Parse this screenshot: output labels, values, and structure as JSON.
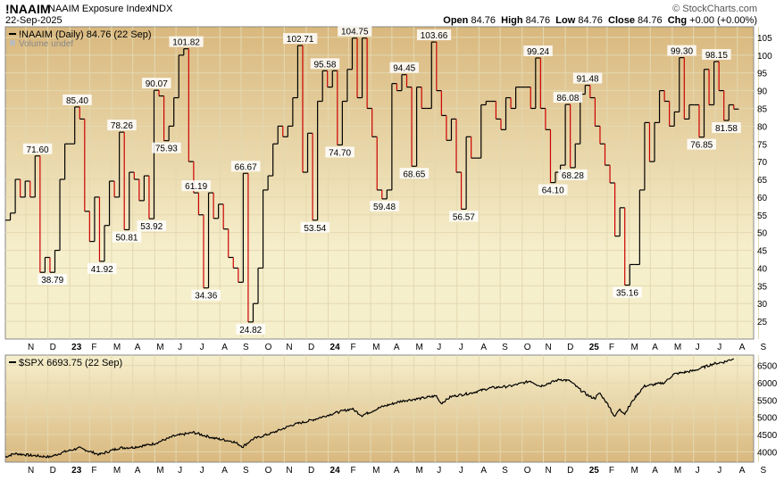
{
  "header": {
    "symbol": "!NAAIM",
    "name": "NAAIM Exposure Index",
    "exchange": "INDX",
    "date": "22-Sep-2025",
    "watermark": "© StockCharts.com",
    "quote": [
      {
        "label": "Open",
        "value": "84.76"
      },
      {
        "label": "High",
        "value": "84.76"
      },
      {
        "label": "Low",
        "value": "84.76"
      },
      {
        "label": "Close",
        "value": "84.76"
      },
      {
        "label": "Chg",
        "value": "+0.00 (+0.00%)"
      }
    ]
  },
  "colors": {
    "up": "#000000",
    "down": "#cc0000",
    "panel_top": "#d9b87e",
    "panel_mid": "#f6efcc",
    "grid": "#e3d8b0"
  },
  "chart_data": [
    {
      "type": "line",
      "panel": "NAAIM",
      "legend": "!NAAIM (Daily) 84.76 (22 Sep)",
      "legend_sub": "Volume undef",
      "x_unit": "week",
      "x_start": "2022-11-02",
      "x_end": "2025-09-24",
      "ylim": [
        20,
        108
      ],
      "yticks": [
        25,
        30,
        35,
        40,
        45,
        50,
        55,
        60,
        65,
        70,
        75,
        80,
        85,
        90,
        95,
        100,
        105
      ],
      "x_tick_labels": [
        "N",
        "D",
        "23",
        "F",
        "M",
        "A",
        "M",
        "J",
        "J",
        "A",
        "S",
        "O",
        "N",
        "D",
        "24",
        "F",
        "M",
        "A",
        "M",
        "J",
        "J",
        "A",
        "S",
        "O",
        "N",
        "D",
        "25",
        "F",
        "M",
        "A",
        "M",
        "J",
        "J",
        "A",
        "S"
      ],
      "line_style": "step",
      "values": [
        53.5,
        55.5,
        65.0,
        60.0,
        64.5,
        60.0,
        71.6,
        38.8,
        43.0,
        38.8,
        45.0,
        65.0,
        75.0,
        75.0,
        85.4,
        82.0,
        56.0,
        47.5,
        60.0,
        41.9,
        52.0,
        64.5,
        60.0,
        78.3,
        50.8,
        67.0,
        65.0,
        59.0,
        66.0,
        53.9,
        90.1,
        88.5,
        75.9,
        80.0,
        88.0,
        100.0,
        101.8,
        70.0,
        61.2,
        55.0,
        34.4,
        61.2,
        54.0,
        58.0,
        51.0,
        43.0,
        40.0,
        36.0,
        66.7,
        24.8,
        30.0,
        40.0,
        62.0,
        66.0,
        75.0,
        80.0,
        77.0,
        80.0,
        88.0,
        102.7,
        67.0,
        78.0,
        53.5,
        87.0,
        95.6,
        91.0,
        95.6,
        74.7,
        87.0,
        96.0,
        104.8,
        88.0,
        104.8,
        85.0,
        77.0,
        62.0,
        59.5,
        62.0,
        92.0,
        90.0,
        94.5,
        91.0,
        68.7,
        91.0,
        85.0,
        85.0,
        103.7,
        90.0,
        83.0,
        76.0,
        82.0,
        67.0,
        56.6,
        77.0,
        71.0,
        71.0,
        86.0,
        87.0,
        87.0,
        82.0,
        79.0,
        88.0,
        85.0,
        91.0,
        91.0,
        91.0,
        85.0,
        99.2,
        85.0,
        79.0,
        64.1,
        67.0,
        69.0,
        86.1,
        68.3,
        75.0,
        89.0,
        91.5,
        88.0,
        80.0,
        75.0,
        69.0,
        64.0,
        49.0,
        57.0,
        35.2,
        41.0,
        41.0,
        62.0,
        81.0,
        70.0,
        81.0,
        90.0,
        87.0,
        80.0,
        84.0,
        99.3,
        82.0,
        86.0,
        86.0,
        76.9,
        96.0,
        86.0,
        98.2,
        90.0,
        81.6,
        86.0,
        84.8
      ],
      "annotations": [
        {
          "i": 6,
          "label": "71.60",
          "pos": "above"
        },
        {
          "i": 9,
          "label": "38.79",
          "pos": "below"
        },
        {
          "i": 14,
          "label": "85.40",
          "pos": "above"
        },
        {
          "i": 19,
          "label": "41.92",
          "pos": "below"
        },
        {
          "i": 23,
          "label": "78.26",
          "pos": "above"
        },
        {
          "i": 24,
          "label": "50.81",
          "pos": "below"
        },
        {
          "i": 29,
          "label": "53.92",
          "pos": "below"
        },
        {
          "i": 30,
          "label": "90.07",
          "pos": "above"
        },
        {
          "i": 32,
          "label": "75.93",
          "pos": "below"
        },
        {
          "i": 36,
          "label": "101.82",
          "pos": "above"
        },
        {
          "i": 38,
          "label": "61.19",
          "pos": "above"
        },
        {
          "i": 40,
          "label": "34.36",
          "pos": "below"
        },
        {
          "i": 48,
          "label": "66.67",
          "pos": "above"
        },
        {
          "i": 49,
          "label": "24.82",
          "pos": "below"
        },
        {
          "i": 59,
          "label": "102.71",
          "pos": "above"
        },
        {
          "i": 62,
          "label": "53.54",
          "pos": "below"
        },
        {
          "i": 64,
          "label": "95.58",
          "pos": "above"
        },
        {
          "i": 67,
          "label": "74.70",
          "pos": "below"
        },
        {
          "i": 70,
          "label": "104.75",
          "pos": "above"
        },
        {
          "i": 76,
          "label": "59.48",
          "pos": "below"
        },
        {
          "i": 80,
          "label": "94.45",
          "pos": "above"
        },
        {
          "i": 82,
          "label": "68.65",
          "pos": "below"
        },
        {
          "i": 86,
          "label": "103.66",
          "pos": "above"
        },
        {
          "i": 92,
          "label": "56.57",
          "pos": "below"
        },
        {
          "i": 107,
          "label": "99.24",
          "pos": "above"
        },
        {
          "i": 110,
          "label": "64.10",
          "pos": "below"
        },
        {
          "i": 113,
          "label": "86.08",
          "pos": "above"
        },
        {
          "i": 114,
          "label": "68.28",
          "pos": "below"
        },
        {
          "i": 117,
          "label": "91.48",
          "pos": "above"
        },
        {
          "i": 125,
          "label": "35.16",
          "pos": "below"
        },
        {
          "i": 136,
          "label": "99.30",
          "pos": "above"
        },
        {
          "i": 140,
          "label": "76.85",
          "pos": "below"
        },
        {
          "i": 143,
          "label": "98.15",
          "pos": "above"
        },
        {
          "i": 145,
          "label": "81.58",
          "pos": "below"
        }
      ]
    },
    {
      "type": "line",
      "panel": "SPX",
      "legend": "$SPX 6693.75 (22 Sep)",
      "x_unit": "week",
      "x_start": "2022-11-02",
      "x_end": "2025-09-24",
      "ylim": [
        3700,
        6800
      ],
      "yticks": [
        4000,
        4500,
        5000,
        5500,
        6000,
        6500
      ],
      "x_tick_labels": [
        "N",
        "D",
        "23",
        "F",
        "M",
        "A",
        "M",
        "J",
        "J",
        "A",
        "S",
        "O",
        "N",
        "D",
        "24",
        "F",
        "M",
        "A",
        "M",
        "J",
        "J",
        "A",
        "S",
        "O",
        "N",
        "D",
        "25",
        "F",
        "M",
        "A",
        "M",
        "J",
        "J",
        "A",
        "S"
      ],
      "line_style": "line",
      "anchors": [
        [
          0,
          3850
        ],
        [
          2,
          3950
        ],
        [
          5,
          3900
        ],
        [
          9,
          3850
        ],
        [
          12,
          4000
        ],
        [
          15,
          4110
        ],
        [
          19,
          3920
        ],
        [
          23,
          4110
        ],
        [
          26,
          4130
        ],
        [
          30,
          4230
        ],
        [
          34,
          4450
        ],
        [
          38,
          4560
        ],
        [
          42,
          4400
        ],
        [
          46,
          4300
        ],
        [
          48,
          4150
        ],
        [
          50,
          4370
        ],
        [
          54,
          4550
        ],
        [
          58,
          4780
        ],
        [
          62,
          4920
        ],
        [
          66,
          5100
        ],
        [
          70,
          5250
        ],
        [
          72,
          5050
        ],
        [
          76,
          5300
        ],
        [
          80,
          5470
        ],
        [
          84,
          5550
        ],
        [
          87,
          5620
        ],
        [
          88,
          5400
        ],
        [
          90,
          5600
        ],
        [
          92,
          5650
        ],
        [
          94,
          5700
        ],
        [
          98,
          5850
        ],
        [
          102,
          5900
        ],
        [
          106,
          6050
        ],
        [
          108,
          5900
        ],
        [
          110,
          6000
        ],
        [
          112,
          6100
        ],
        [
          114,
          6050
        ],
        [
          116,
          5800
        ],
        [
          118,
          5600
        ],
        [
          119,
          5550
        ],
        [
          120,
          5700
        ],
        [
          122,
          5300
        ],
        [
          123,
          5000
        ],
        [
          124,
          5250
        ],
        [
          125,
          5100
        ],
        [
          127,
          5550
        ],
        [
          129,
          5900
        ],
        [
          131,
          5950
        ],
        [
          133,
          6000
        ],
        [
          135,
          6250
        ],
        [
          137,
          6300
        ],
        [
          139,
          6350
        ],
        [
          141,
          6450
        ],
        [
          143,
          6550
        ],
        [
          145,
          6600
        ],
        [
          147,
          6694
        ]
      ]
    }
  ]
}
